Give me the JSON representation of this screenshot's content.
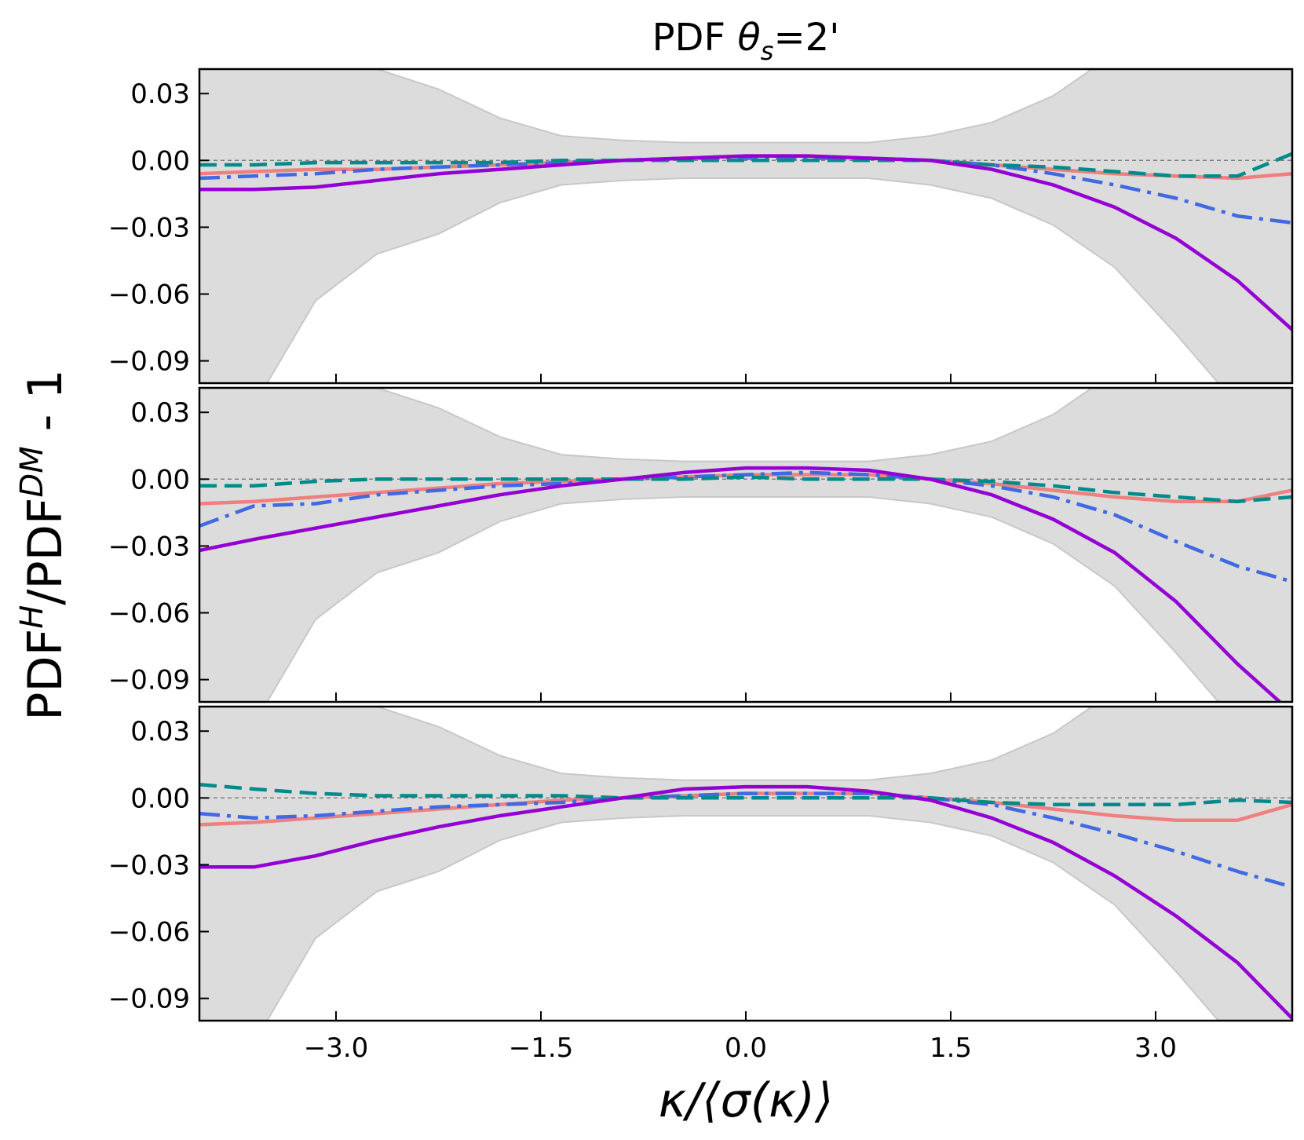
{
  "chart_data": {
    "type": "line",
    "title": "PDF θ_s=2'",
    "title_parts": {
      "prefix": "PDF ",
      "symbol": "θ",
      "subscript": "s",
      "suffix": "=2'"
    },
    "xlabel": "κ/⟨σ(κ)⟩",
    "ylabel": "PDF^H/PDF^DM - 1",
    "ylabel_parts": {
      "a": "PDF",
      "a_sup": "H",
      "slash": "/PDF",
      "b_sup": "DM",
      "tail": " - 1"
    },
    "xlim": [
      -4.0,
      4.0
    ],
    "ylim": [
      -0.1,
      0.041
    ],
    "xticks": [
      -3.0,
      -1.5,
      0.0,
      1.5,
      3.0
    ],
    "xtick_labels": [
      "−3.0",
      "−1.5",
      "0.0",
      "1.5",
      "3.0"
    ],
    "yticks": [
      0.03,
      0.0,
      -0.03,
      -0.06,
      -0.09
    ],
    "ytick_labels": [
      "0.03",
      "0.00",
      "−0.03",
      "−0.06",
      "−0.09"
    ],
    "reference_line": 0.0,
    "x": [
      -4.0,
      -3.6,
      -3.15,
      -2.7,
      -2.25,
      -1.8,
      -1.35,
      -0.9,
      -0.45,
      0.0,
      0.45,
      0.9,
      1.35,
      1.8,
      2.25,
      2.7,
      3.15,
      3.6,
      4.0
    ],
    "band": {
      "upper": [
        0.11,
        0.08,
        0.06,
        0.041,
        0.032,
        0.019,
        0.011,
        0.009,
        0.008,
        0.008,
        0.008,
        0.008,
        0.011,
        0.017,
        0.029,
        0.048,
        0.078,
        0.11,
        0.14
      ],
      "lower": [
        -0.14,
        -0.11,
        -0.063,
        -0.042,
        -0.033,
        -0.019,
        -0.011,
        -0.009,
        -0.008,
        -0.008,
        -0.008,
        -0.008,
        -0.011,
        -0.017,
        -0.029,
        -0.048,
        -0.078,
        -0.11,
        -0.14
      ],
      "color": "#dcdcdc",
      "edge_color": "#c8c8c8"
    },
    "panels": [
      {
        "series": [
          {
            "name": "salmon-solid",
            "color": "#f08080",
            "style": "solid",
            "values": [
              -0.006,
              -0.005,
              -0.004,
              -0.004,
              -0.003,
              -0.002,
              -0.001,
              0.0,
              0.001,
              0.002,
              0.002,
              0.001,
              0.0,
              -0.002,
              -0.004,
              -0.006,
              -0.007,
              -0.008,
              -0.006
            ]
          },
          {
            "name": "royalblue-dashdot",
            "color": "#4169e1",
            "style": "dashdot",
            "values": [
              -0.008,
              -0.007,
              -0.006,
              -0.004,
              -0.003,
              -0.002,
              -0.001,
              0.0,
              0.001,
              0.001,
              0.001,
              0.001,
              0.0,
              -0.002,
              -0.006,
              -0.011,
              -0.017,
              -0.025,
              -0.028
            ]
          },
          {
            "name": "teal-dashed",
            "color": "#008b8b",
            "style": "dashed",
            "values": [
              -0.002,
              -0.002,
              -0.001,
              -0.001,
              -0.001,
              -0.001,
              0.0,
              0.0,
              0.0,
              0.0,
              0.0,
              0.0,
              0.0,
              -0.002,
              -0.003,
              -0.005,
              -0.007,
              -0.007,
              0.003
            ]
          },
          {
            "name": "darkviolet-solid",
            "color": "#9400d3",
            "style": "solid",
            "values": [
              -0.013,
              -0.013,
              -0.012,
              -0.009,
              -0.006,
              -0.004,
              -0.002,
              0.0,
              0.001,
              0.002,
              0.002,
              0.001,
              0.0,
              -0.004,
              -0.011,
              -0.021,
              -0.035,
              -0.054,
              -0.076
            ]
          }
        ]
      },
      {
        "series": [
          {
            "name": "salmon-solid",
            "color": "#f08080",
            "style": "solid",
            "values": [
              -0.011,
              -0.01,
              -0.008,
              -0.006,
              -0.004,
              -0.002,
              -0.001,
              0.0,
              0.001,
              0.002,
              0.002,
              0.002,
              0.0,
              -0.002,
              -0.005,
              -0.008,
              -0.01,
              -0.01,
              -0.005
            ]
          },
          {
            "name": "royalblue-dashdot",
            "color": "#4169e1",
            "style": "dashdot",
            "values": [
              -0.021,
              -0.012,
              -0.011,
              -0.007,
              -0.005,
              -0.003,
              -0.002,
              0.0,
              0.001,
              0.002,
              0.003,
              0.002,
              0.0,
              -0.003,
              -0.008,
              -0.016,
              -0.028,
              -0.039,
              -0.046
            ]
          },
          {
            "name": "teal-dashed",
            "color": "#008b8b",
            "style": "dashed",
            "values": [
              -0.003,
              -0.003,
              -0.001,
              0.0,
              0.0,
              0.0,
              0.0,
              0.0,
              0.0,
              0.001,
              0.0,
              0.0,
              0.0,
              -0.001,
              -0.003,
              -0.006,
              -0.008,
              -0.01,
              -0.008
            ]
          },
          {
            "name": "darkviolet-solid",
            "color": "#9400d3",
            "style": "solid",
            "values": [
              -0.032,
              -0.027,
              -0.022,
              -0.017,
              -0.012,
              -0.007,
              -0.003,
              0.0,
              0.003,
              0.005,
              0.005,
              0.004,
              0.0,
              -0.007,
              -0.018,
              -0.033,
              -0.055,
              -0.083,
              -0.105
            ]
          }
        ]
      },
      {
        "series": [
          {
            "name": "salmon-solid",
            "color": "#f08080",
            "style": "solid",
            "values": [
              -0.012,
              -0.011,
              -0.009,
              -0.007,
              -0.005,
              -0.003,
              -0.001,
              0.0,
              0.001,
              0.002,
              0.002,
              0.002,
              0.0,
              -0.002,
              -0.005,
              -0.008,
              -0.01,
              -0.01,
              -0.003
            ]
          },
          {
            "name": "royalblue-dashdot",
            "color": "#4169e1",
            "style": "dashdot",
            "values": [
              -0.007,
              -0.009,
              -0.008,
              -0.006,
              -0.004,
              -0.003,
              -0.002,
              0.0,
              0.001,
              0.002,
              0.002,
              0.002,
              0.0,
              -0.003,
              -0.009,
              -0.016,
              -0.024,
              -0.033,
              -0.04
            ]
          },
          {
            "name": "teal-dashed",
            "color": "#008b8b",
            "style": "dashed",
            "values": [
              0.006,
              0.004,
              0.002,
              0.001,
              0.001,
              0.001,
              0.001,
              0.0,
              0.0,
              0.0,
              0.0,
              0.0,
              0.0,
              -0.002,
              -0.003,
              -0.003,
              -0.003,
              -0.001,
              -0.002
            ]
          },
          {
            "name": "darkviolet-solid",
            "color": "#9400d3",
            "style": "solid",
            "values": [
              -0.031,
              -0.031,
              -0.026,
              -0.019,
              -0.013,
              -0.008,
              -0.004,
              0.0,
              0.004,
              0.005,
              0.005,
              0.003,
              -0.001,
              -0.009,
              -0.02,
              -0.035,
              -0.053,
              -0.074,
              -0.099
            ]
          }
        ]
      }
    ]
  }
}
